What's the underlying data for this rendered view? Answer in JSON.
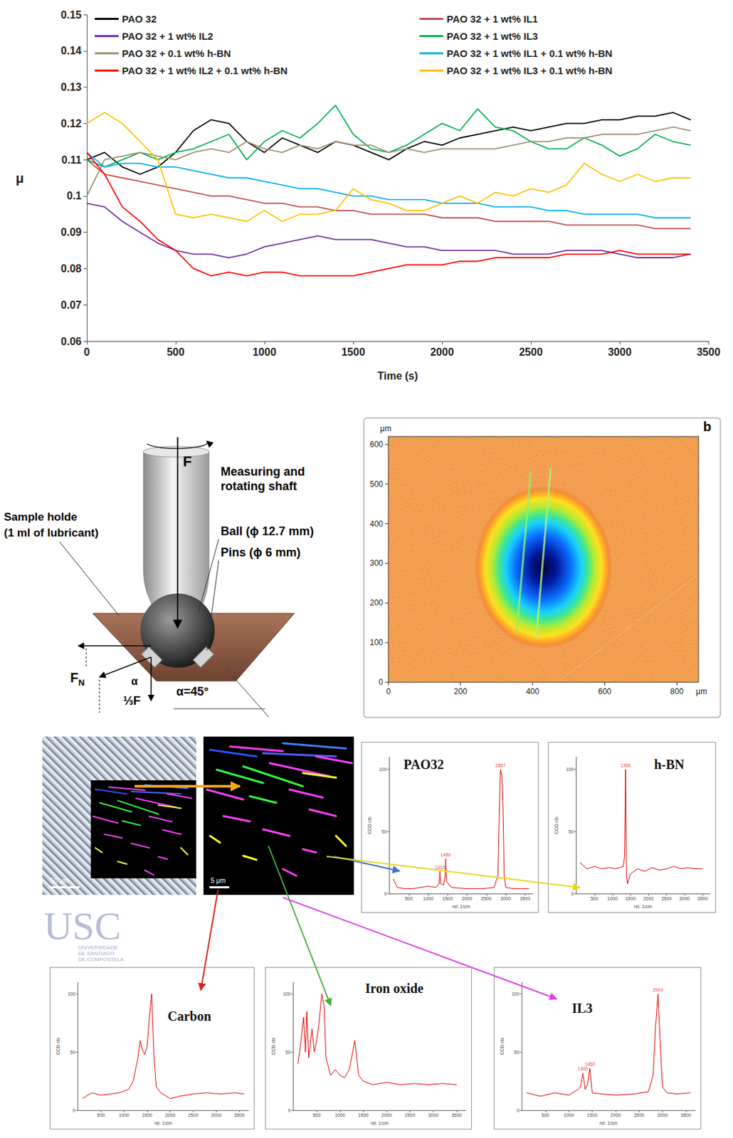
{
  "chart_data": {
    "type": "line",
    "x_label": "Time (s)",
    "y_label": "μ",
    "x": [
      0,
      100,
      200,
      300,
      400,
      500,
      600,
      700,
      800,
      900,
      1000,
      1100,
      1200,
      1300,
      1400,
      1500,
      1600,
      1700,
      1800,
      1900,
      2000,
      2100,
      2200,
      2300,
      2400,
      2500,
      2600,
      2700,
      2800,
      2900,
      3000,
      3100,
      3200,
      3300,
      3400
    ],
    "xlim": [
      0,
      3500
    ],
    "xticks": [
      0,
      500,
      1000,
      1500,
      2000,
      2500,
      3000,
      3500
    ],
    "ylim": [
      0.06,
      0.15
    ],
    "yticks": [
      0.06,
      0.07,
      0.08,
      0.09,
      0.1,
      0.11,
      0.12,
      0.13,
      0.14,
      0.15
    ],
    "grid": false,
    "legend": "top",
    "series": [
      {
        "name": "PAO 32",
        "color": "#000000",
        "values": [
          0.11,
          0.112,
          0.108,
          0.106,
          0.108,
          0.112,
          0.118,
          0.121,
          0.12,
          0.115,
          0.112,
          0.116,
          0.114,
          0.112,
          0.115,
          0.114,
          0.112,
          0.11,
          0.113,
          0.115,
          0.114,
          0.116,
          0.117,
          0.118,
          0.119,
          0.118,
          0.119,
          0.12,
          0.12,
          0.121,
          0.121,
          0.122,
          0.122,
          0.123,
          0.121
        ]
      },
      {
        "name": "PAO 32 + 1 wt% IL1",
        "color": "#c0504d",
        "values": [
          0.11,
          0.106,
          0.105,
          0.104,
          0.103,
          0.102,
          0.101,
          0.1,
          0.1,
          0.099,
          0.098,
          0.098,
          0.097,
          0.097,
          0.096,
          0.096,
          0.095,
          0.095,
          0.095,
          0.095,
          0.094,
          0.094,
          0.094,
          0.093,
          0.093,
          0.093,
          0.093,
          0.092,
          0.092,
          0.092,
          0.092,
          0.092,
          0.091,
          0.091,
          0.091
        ]
      },
      {
        "name": "PAO 32 + 1 wt% IL2",
        "color": "#7030a0",
        "values": [
          0.098,
          0.097,
          0.093,
          0.09,
          0.087,
          0.085,
          0.084,
          0.084,
          0.083,
          0.084,
          0.086,
          0.087,
          0.088,
          0.089,
          0.088,
          0.088,
          0.088,
          0.087,
          0.086,
          0.086,
          0.085,
          0.085,
          0.085,
          0.085,
          0.084,
          0.084,
          0.084,
          0.085,
          0.085,
          0.085,
          0.084,
          0.083,
          0.083,
          0.083,
          0.084
        ]
      },
      {
        "name": "PAO 32 + 1 wt% IL3",
        "color": "#00b050",
        "values": [
          0.11,
          0.108,
          0.11,
          0.112,
          0.11,
          0.112,
          0.113,
          0.115,
          0.117,
          0.11,
          0.115,
          0.118,
          0.116,
          0.12,
          0.125,
          0.117,
          0.113,
          0.112,
          0.114,
          0.117,
          0.12,
          0.118,
          0.124,
          0.119,
          0.118,
          0.115,
          0.113,
          0.113,
          0.116,
          0.114,
          0.111,
          0.113,
          0.117,
          0.115,
          0.114
        ]
      },
      {
        "name": "PAO 32 + 0.1 wt% h-BN",
        "color": "#a09070",
        "values": [
          0.1,
          0.11,
          0.111,
          0.112,
          0.111,
          0.11,
          0.112,
          0.113,
          0.112,
          0.115,
          0.113,
          0.112,
          0.114,
          0.113,
          0.115,
          0.114,
          0.114,
          0.112,
          0.113,
          0.112,
          0.113,
          0.113,
          0.113,
          0.113,
          0.114,
          0.115,
          0.115,
          0.116,
          0.116,
          0.117,
          0.117,
          0.117,
          0.118,
          0.119,
          0.118
        ]
      },
      {
        "name": "PAO 32 + 1 wt% IL1 + 0.1 wt% h-BN",
        "color": "#00b0f0",
        "values": [
          0.112,
          0.108,
          0.109,
          0.109,
          0.108,
          0.108,
          0.107,
          0.106,
          0.105,
          0.105,
          0.104,
          0.103,
          0.102,
          0.102,
          0.101,
          0.1,
          0.1,
          0.099,
          0.099,
          0.099,
          0.098,
          0.098,
          0.098,
          0.097,
          0.097,
          0.097,
          0.096,
          0.096,
          0.095,
          0.095,
          0.095,
          0.095,
          0.094,
          0.094,
          0.094
        ]
      },
      {
        "name": "PAO 32 + 1 wt% IL2 + 0.1 wt% h-BN",
        "color": "#ff0000",
        "values": [
          0.112,
          0.106,
          0.097,
          0.093,
          0.088,
          0.085,
          0.08,
          0.078,
          0.079,
          0.078,
          0.079,
          0.079,
          0.078,
          0.078,
          0.078,
          0.078,
          0.079,
          0.08,
          0.081,
          0.081,
          0.081,
          0.082,
          0.082,
          0.083,
          0.083,
          0.083,
          0.083,
          0.084,
          0.084,
          0.084,
          0.085,
          0.084,
          0.084,
          0.084,
          0.084
        ]
      },
      {
        "name": "PAO 32 + 1 wt% IL3 + 0.1 wt% h-BN",
        "color": "#ffc000",
        "values": [
          0.12,
          0.123,
          0.12,
          0.115,
          0.11,
          0.095,
          0.094,
          0.095,
          0.094,
          0.093,
          0.096,
          0.093,
          0.095,
          0.095,
          0.096,
          0.102,
          0.099,
          0.098,
          0.096,
          0.096,
          0.098,
          0.1,
          0.098,
          0.101,
          0.1,
          0.102,
          0.101,
          0.103,
          0.109,
          0.106,
          0.104,
          0.106,
          0.104,
          0.105,
          0.105
        ]
      }
    ]
  },
  "schematic": {
    "force": "F",
    "shaft": [
      "Measuring and",
      "rotating shaft"
    ],
    "ball": "Ball (ϕ 12.7 mm)",
    "pins": "Pins (ϕ 6 mm)",
    "holder": [
      "Sample holde",
      "(1 ml of lubricant)"
    ],
    "normal_force": {
      "symbol": "F",
      "subscript": "N"
    },
    "fraction_force": "⅓F",
    "angle_symbol": "α",
    "angle": "α=45°"
  },
  "topography": {
    "letter": "b",
    "unit": "μm",
    "xlim": [
      0,
      860
    ],
    "xticks": [
      0,
      200,
      400,
      600,
      800
    ],
    "ylim": [
      0,
      620
    ],
    "yticks": [
      0,
      100,
      200,
      300,
      400,
      500,
      600
    ]
  },
  "raman": {
    "scale_bars": [
      "50 μm",
      "5 μm"
    ],
    "x_label": "rel. 1/cm",
    "y_label": "CCD cts",
    "color": "#e00000",
    "xlim": [
      0,
      3700
    ],
    "xticks": [
      500,
      1000,
      1500,
      2000,
      2500,
      3000,
      3500
    ],
    "ylim": [
      0,
      110
    ],
    "yticks": [
      0,
      50,
      100
    ],
    "spectra": [
      {
        "name": "PAO32",
        "x": [
          100,
          200,
          400,
          600,
          800,
          1000,
          1200,
          1280,
          1302,
          1320,
          1400,
          1440,
          1450,
          1470,
          1600,
          2000,
          2400,
          2700,
          2800,
          2850,
          2867,
          2900,
          2930,
          2960,
          3000,
          3200,
          3400,
          3600
        ],
        "values": [
          12,
          5,
          4,
          4,
          5,
          6,
          5,
          8,
          18,
          8,
          7,
          15,
          28,
          10,
          5,
          4,
          4,
          5,
          15,
          85,
          100,
          95,
          70,
          15,
          5,
          4,
          4,
          4
        ],
        "peaks": [
          1302,
          1450,
          2867
        ]
      },
      {
        "name": "h-BN",
        "x": [
          100,
          300,
          500,
          700,
          900,
          1100,
          1300,
          1340,
          1366,
          1390,
          1420,
          1500,
          1700,
          1900,
          2100,
          2300,
          2500,
          2700,
          2900,
          3100,
          3300,
          3500
        ],
        "values": [
          25,
          20,
          22,
          20,
          21,
          20,
          22,
          30,
          100,
          15,
          8,
          16,
          20,
          18,
          21,
          19,
          20,
          22,
          20,
          21,
          20,
          20
        ],
        "peaks": [
          1366
        ]
      },
      {
        "name": "Carbon",
        "x": [
          100,
          300,
          500,
          700,
          900,
          1100,
          1200,
          1300,
          1350,
          1400,
          1450,
          1500,
          1550,
          1600,
          1650,
          1700,
          1800,
          2000,
          2200,
          2500,
          2800,
          3100,
          3400,
          3600
        ],
        "values": [
          10,
          15,
          13,
          14,
          15,
          18,
          25,
          45,
          60,
          52,
          48,
          55,
          80,
          100,
          45,
          20,
          15,
          10,
          12,
          14,
          15,
          14,
          15,
          14
        ],
        "peaks": []
      },
      {
        "name": "Iron oxide",
        "x": [
          100,
          150,
          220,
          260,
          290,
          330,
          400,
          450,
          500,
          550,
          610,
          660,
          700,
          800,
          900,
          1000,
          1100,
          1200,
          1320,
          1400,
          1500,
          1700,
          2000,
          2300,
          2600,
          2900,
          3200,
          3500
        ],
        "values": [
          40,
          55,
          80,
          50,
          85,
          45,
          70,
          50,
          60,
          75,
          100,
          90,
          45,
          30,
          35,
          30,
          28,
          35,
          60,
          30,
          25,
          22,
          24,
          22,
          23,
          22,
          23,
          22
        ],
        "peaks": []
      },
      {
        "name": "IL3",
        "x": [
          100,
          400,
          700,
          1000,
          1200,
          1250,
          1300,
          1350,
          1400,
          1450,
          1500,
          1700,
          2000,
          2400,
          2700,
          2800,
          2850,
          2904,
          2950,
          3000,
          3100,
          3300,
          3600
        ],
        "values": [
          15,
          12,
          15,
          13,
          18,
          20,
          32,
          18,
          22,
          36,
          15,
          14,
          13,
          14,
          16,
          30,
          70,
          100,
          60,
          20,
          15,
          14,
          15
        ],
        "peaks": [
          1300,
          1450,
          2904
        ]
      }
    ]
  },
  "watermark": {
    "logo": "USC",
    "lines": [
      "UNIVERSIDADE",
      "DE SANTIAGO",
      "DE COMPOSTELA"
    ]
  }
}
